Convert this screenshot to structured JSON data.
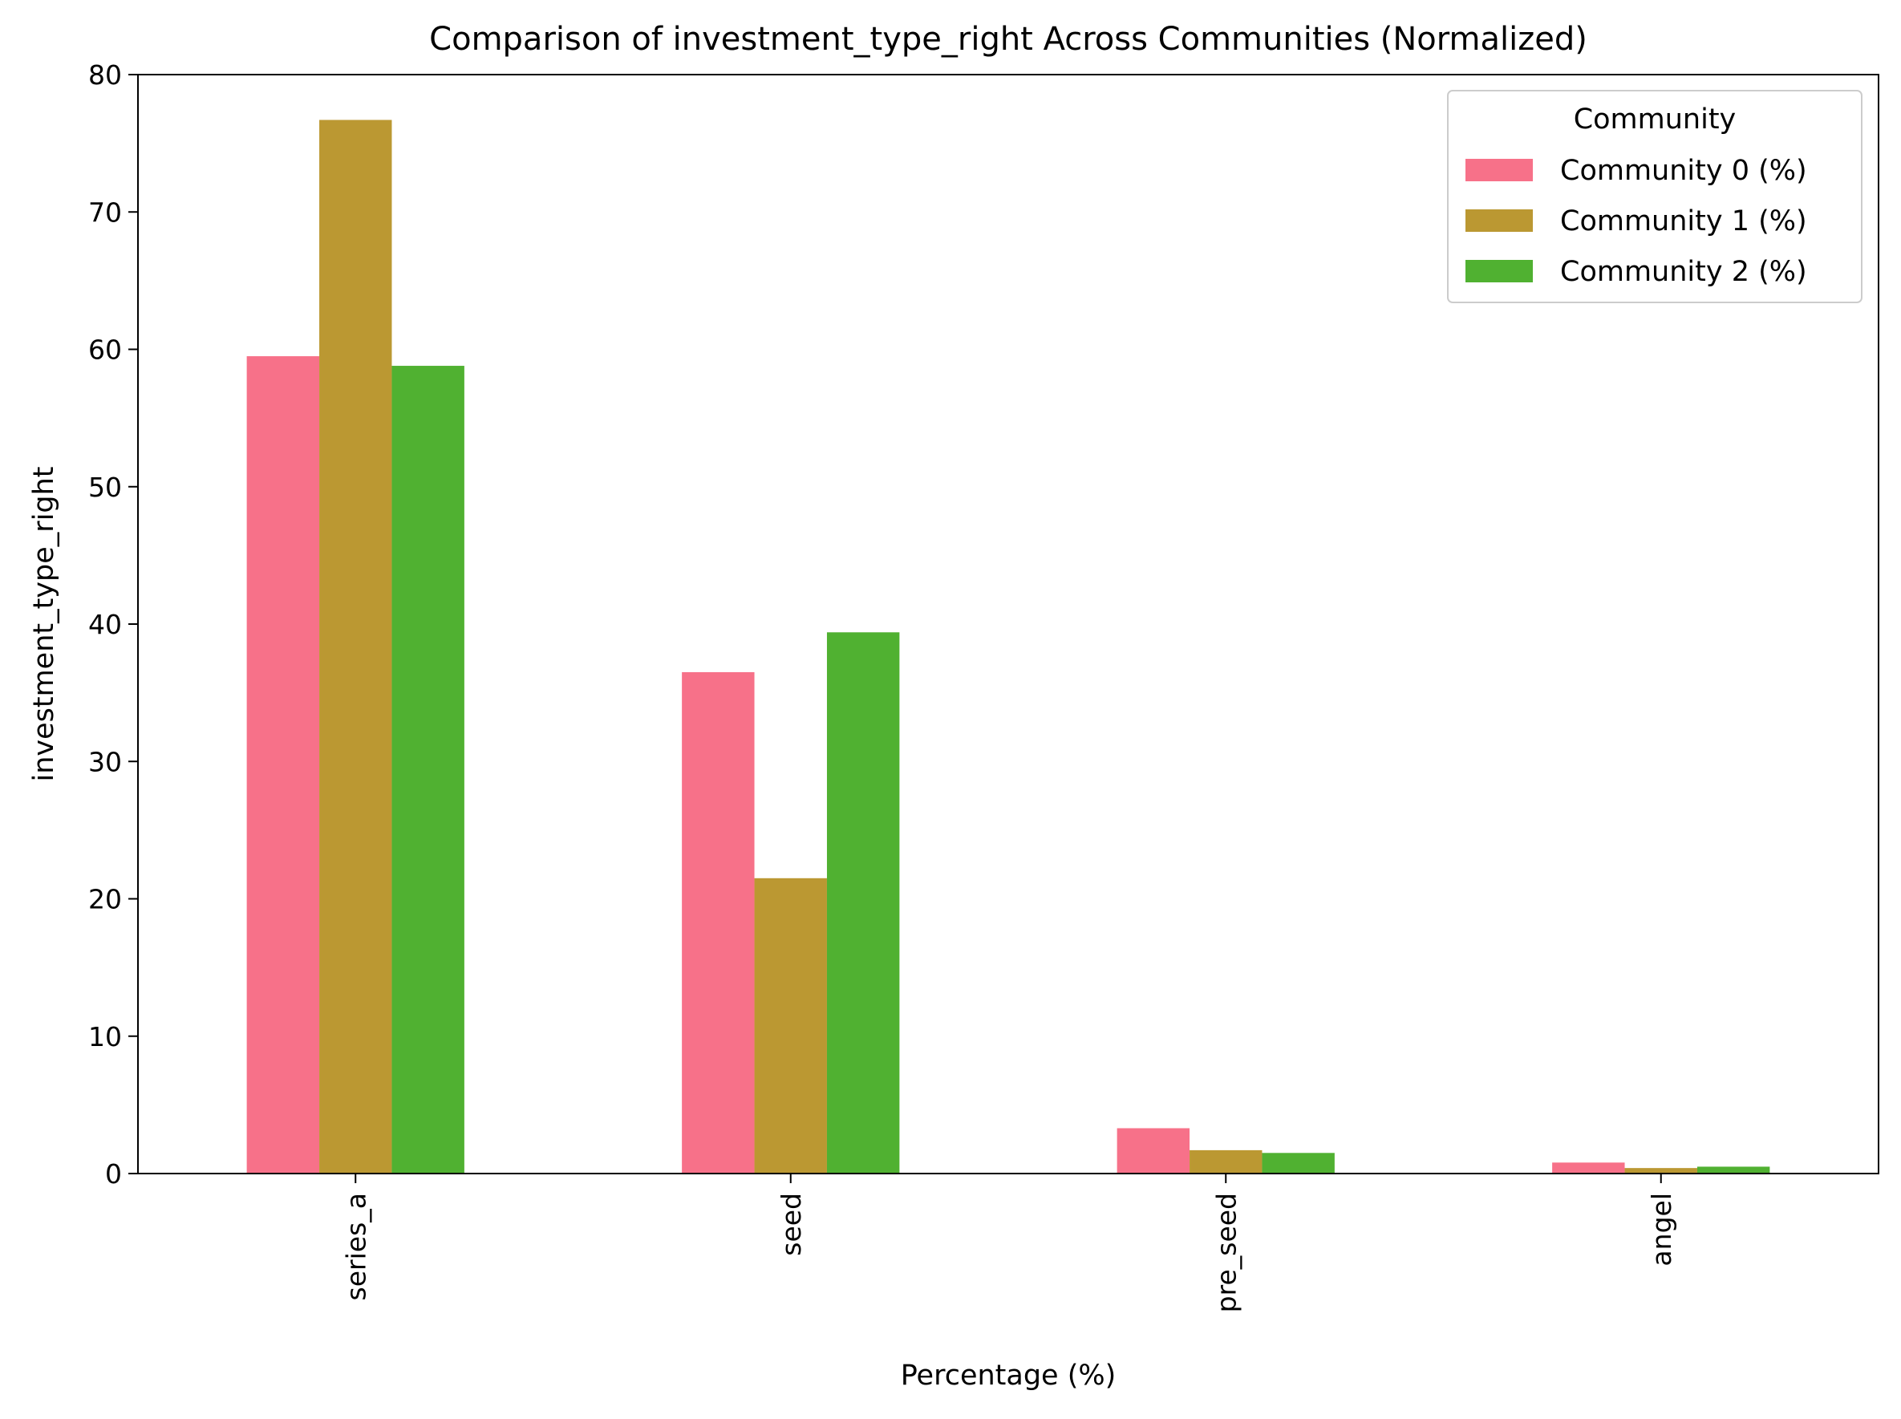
{
  "chart_data": {
    "type": "bar",
    "title": "Comparison of investment_type_right Across Communities (Normalized)",
    "xlabel": "Percentage (%)",
    "ylabel": "investment_type_right",
    "categories": [
      "series_a",
      "seed",
      "pre_seed",
      "angel"
    ],
    "series": [
      {
        "name": "Community 0 (%)",
        "color": "#f77189",
        "values": [
          59.5,
          36.5,
          3.3,
          0.8
        ]
      },
      {
        "name": "Community 1 (%)",
        "color": "#bb9832",
        "values": [
          76.7,
          21.5,
          1.7,
          0.4
        ]
      },
      {
        "name": "Community 2 (%)",
        "color": "#50b131",
        "values": [
          58.8,
          39.4,
          1.5,
          0.5
        ]
      }
    ],
    "ylim": [
      0,
      80
    ],
    "yticks": [
      0,
      10,
      20,
      30,
      40,
      50,
      60,
      70,
      80
    ],
    "grid": false,
    "legend": {
      "title": "Community",
      "position": "top-right"
    }
  }
}
